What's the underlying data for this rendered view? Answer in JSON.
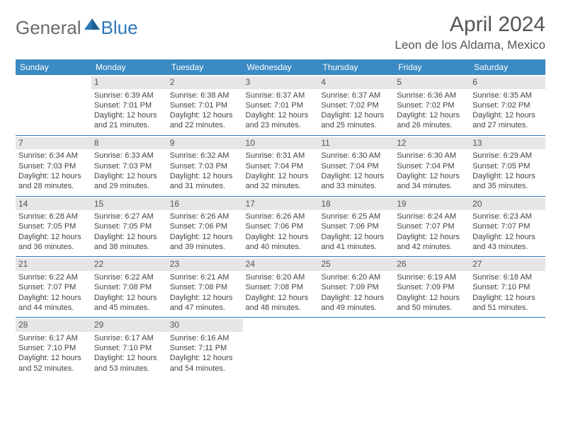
{
  "logo": {
    "general": "General",
    "blue": "Blue"
  },
  "title": "April 2024",
  "location": "Leon de los Aldama, Mexico",
  "colors": {
    "header_bg": "#3b8ac4",
    "header_text": "#ffffff",
    "daynum_bg": "#e6e6e6",
    "row_border": "#2c78b8",
    "text": "#444444",
    "title_text": "#555555",
    "logo_gray": "#6a6a6a",
    "logo_blue": "#2c78b8"
  },
  "weekdays": [
    "Sunday",
    "Monday",
    "Tuesday",
    "Wednesday",
    "Thursday",
    "Friday",
    "Saturday"
  ],
  "weeks": [
    [
      {
        "empty": true
      },
      {
        "num": "1",
        "sunrise": "Sunrise: 6:39 AM",
        "sunset": "Sunset: 7:01 PM",
        "daylight": "Daylight: 12 hours and 21 minutes."
      },
      {
        "num": "2",
        "sunrise": "Sunrise: 6:38 AM",
        "sunset": "Sunset: 7:01 PM",
        "daylight": "Daylight: 12 hours and 22 minutes."
      },
      {
        "num": "3",
        "sunrise": "Sunrise: 6:37 AM",
        "sunset": "Sunset: 7:01 PM",
        "daylight": "Daylight: 12 hours and 23 minutes."
      },
      {
        "num": "4",
        "sunrise": "Sunrise: 6:37 AM",
        "sunset": "Sunset: 7:02 PM",
        "daylight": "Daylight: 12 hours and 25 minutes."
      },
      {
        "num": "5",
        "sunrise": "Sunrise: 6:36 AM",
        "sunset": "Sunset: 7:02 PM",
        "daylight": "Daylight: 12 hours and 26 minutes."
      },
      {
        "num": "6",
        "sunrise": "Sunrise: 6:35 AM",
        "sunset": "Sunset: 7:02 PM",
        "daylight": "Daylight: 12 hours and 27 minutes."
      }
    ],
    [
      {
        "num": "7",
        "sunrise": "Sunrise: 6:34 AM",
        "sunset": "Sunset: 7:03 PM",
        "daylight": "Daylight: 12 hours and 28 minutes."
      },
      {
        "num": "8",
        "sunrise": "Sunrise: 6:33 AM",
        "sunset": "Sunset: 7:03 PM",
        "daylight": "Daylight: 12 hours and 29 minutes."
      },
      {
        "num": "9",
        "sunrise": "Sunrise: 6:32 AM",
        "sunset": "Sunset: 7:03 PM",
        "daylight": "Daylight: 12 hours and 31 minutes."
      },
      {
        "num": "10",
        "sunrise": "Sunrise: 6:31 AM",
        "sunset": "Sunset: 7:04 PM",
        "daylight": "Daylight: 12 hours and 32 minutes."
      },
      {
        "num": "11",
        "sunrise": "Sunrise: 6:30 AM",
        "sunset": "Sunset: 7:04 PM",
        "daylight": "Daylight: 12 hours and 33 minutes."
      },
      {
        "num": "12",
        "sunrise": "Sunrise: 6:30 AM",
        "sunset": "Sunset: 7:04 PM",
        "daylight": "Daylight: 12 hours and 34 minutes."
      },
      {
        "num": "13",
        "sunrise": "Sunrise: 6:29 AM",
        "sunset": "Sunset: 7:05 PM",
        "daylight": "Daylight: 12 hours and 35 minutes."
      }
    ],
    [
      {
        "num": "14",
        "sunrise": "Sunrise: 6:28 AM",
        "sunset": "Sunset: 7:05 PM",
        "daylight": "Daylight: 12 hours and 36 minutes."
      },
      {
        "num": "15",
        "sunrise": "Sunrise: 6:27 AM",
        "sunset": "Sunset: 7:05 PM",
        "daylight": "Daylight: 12 hours and 38 minutes."
      },
      {
        "num": "16",
        "sunrise": "Sunrise: 6:26 AM",
        "sunset": "Sunset: 7:06 PM",
        "daylight": "Daylight: 12 hours and 39 minutes."
      },
      {
        "num": "17",
        "sunrise": "Sunrise: 6:26 AM",
        "sunset": "Sunset: 7:06 PM",
        "daylight": "Daylight: 12 hours and 40 minutes."
      },
      {
        "num": "18",
        "sunrise": "Sunrise: 6:25 AM",
        "sunset": "Sunset: 7:06 PM",
        "daylight": "Daylight: 12 hours and 41 minutes."
      },
      {
        "num": "19",
        "sunrise": "Sunrise: 6:24 AM",
        "sunset": "Sunset: 7:07 PM",
        "daylight": "Daylight: 12 hours and 42 minutes."
      },
      {
        "num": "20",
        "sunrise": "Sunrise: 6:23 AM",
        "sunset": "Sunset: 7:07 PM",
        "daylight": "Daylight: 12 hours and 43 minutes."
      }
    ],
    [
      {
        "num": "21",
        "sunrise": "Sunrise: 6:22 AM",
        "sunset": "Sunset: 7:07 PM",
        "daylight": "Daylight: 12 hours and 44 minutes."
      },
      {
        "num": "22",
        "sunrise": "Sunrise: 6:22 AM",
        "sunset": "Sunset: 7:08 PM",
        "daylight": "Daylight: 12 hours and 45 minutes."
      },
      {
        "num": "23",
        "sunrise": "Sunrise: 6:21 AM",
        "sunset": "Sunset: 7:08 PM",
        "daylight": "Daylight: 12 hours and 47 minutes."
      },
      {
        "num": "24",
        "sunrise": "Sunrise: 6:20 AM",
        "sunset": "Sunset: 7:08 PM",
        "daylight": "Daylight: 12 hours and 48 minutes."
      },
      {
        "num": "25",
        "sunrise": "Sunrise: 6:20 AM",
        "sunset": "Sunset: 7:09 PM",
        "daylight": "Daylight: 12 hours and 49 minutes."
      },
      {
        "num": "26",
        "sunrise": "Sunrise: 6:19 AM",
        "sunset": "Sunset: 7:09 PM",
        "daylight": "Daylight: 12 hours and 50 minutes."
      },
      {
        "num": "27",
        "sunrise": "Sunrise: 6:18 AM",
        "sunset": "Sunset: 7:10 PM",
        "daylight": "Daylight: 12 hours and 51 minutes."
      }
    ],
    [
      {
        "num": "28",
        "sunrise": "Sunrise: 6:17 AM",
        "sunset": "Sunset: 7:10 PM",
        "daylight": "Daylight: 12 hours and 52 minutes."
      },
      {
        "num": "29",
        "sunrise": "Sunrise: 6:17 AM",
        "sunset": "Sunset: 7:10 PM",
        "daylight": "Daylight: 12 hours and 53 minutes."
      },
      {
        "num": "30",
        "sunrise": "Sunrise: 6:16 AM",
        "sunset": "Sunset: 7:11 PM",
        "daylight": "Daylight: 12 hours and 54 minutes."
      },
      {
        "empty": true
      },
      {
        "empty": true
      },
      {
        "empty": true
      },
      {
        "empty": true
      }
    ]
  ]
}
